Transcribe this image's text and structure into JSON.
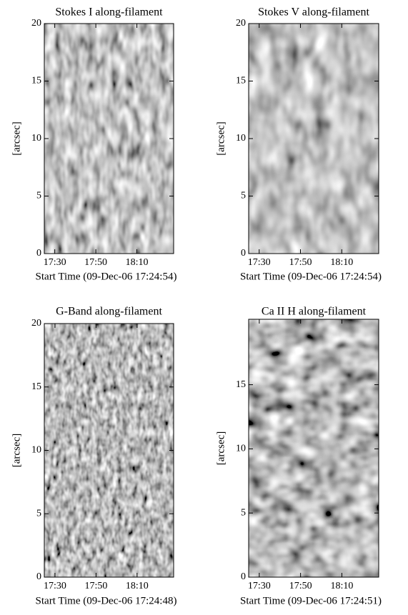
{
  "chart_data": [
    {
      "type": "image",
      "title": "Stokes I along-filament",
      "xlabel": "Start Time (09-Dec-06 17:24:54)",
      "ylabel": "[arcsec]",
      "xlim": [
        1044.9,
        1107.9
      ],
      "xticks": [
        {
          "value": 1050,
          "label": "17:30"
        },
        {
          "value": 1070,
          "label": "17:50"
        },
        {
          "value": 1090,
          "label": "18:10"
        }
      ],
      "ylim": [
        0,
        20
      ],
      "yticks": [
        0,
        5,
        10,
        15,
        20
      ]
    },
    {
      "type": "image",
      "title": "Stokes V along-filament",
      "xlabel": "Start Time (09-Dec-06 17:24:54)",
      "ylabel": "[arcsec]",
      "xlim": [
        1044.9,
        1107.9
      ],
      "xticks": [
        {
          "value": 1050,
          "label": "17:30"
        },
        {
          "value": 1070,
          "label": "17:50"
        },
        {
          "value": 1090,
          "label": "18:10"
        }
      ],
      "ylim": [
        0,
        20
      ],
      "yticks": [
        0,
        5,
        10,
        15,
        20
      ]
    },
    {
      "type": "image",
      "title": "G-Band along-filament",
      "xlabel": "Start Time (09-Dec-06 17:24:48)",
      "ylabel": "[arcsec]",
      "xlim": [
        1044.8,
        1107.8
      ],
      "xticks": [
        {
          "value": 1050,
          "label": "17:30"
        },
        {
          "value": 1070,
          "label": "17:50"
        },
        {
          "value": 1090,
          "label": "18:10"
        }
      ],
      "ylim": [
        0,
        20
      ],
      "yticks": [
        0,
        5,
        10,
        15,
        20
      ]
    },
    {
      "type": "image",
      "title": "Ca II H along-filament",
      "xlabel": "Start Time (09-Dec-06 17:24:51)",
      "ylabel": "[arcsec]",
      "xlim": [
        1044.85,
        1107.85
      ],
      "xticks": [
        {
          "value": 1050,
          "label": "17:30"
        },
        {
          "value": 1070,
          "label": "17:50"
        },
        {
          "value": 1090,
          "label": "18:10"
        }
      ],
      "ylim": [
        0,
        20.1
      ],
      "yticks": [
        0,
        5,
        10,
        15
      ]
    }
  ]
}
